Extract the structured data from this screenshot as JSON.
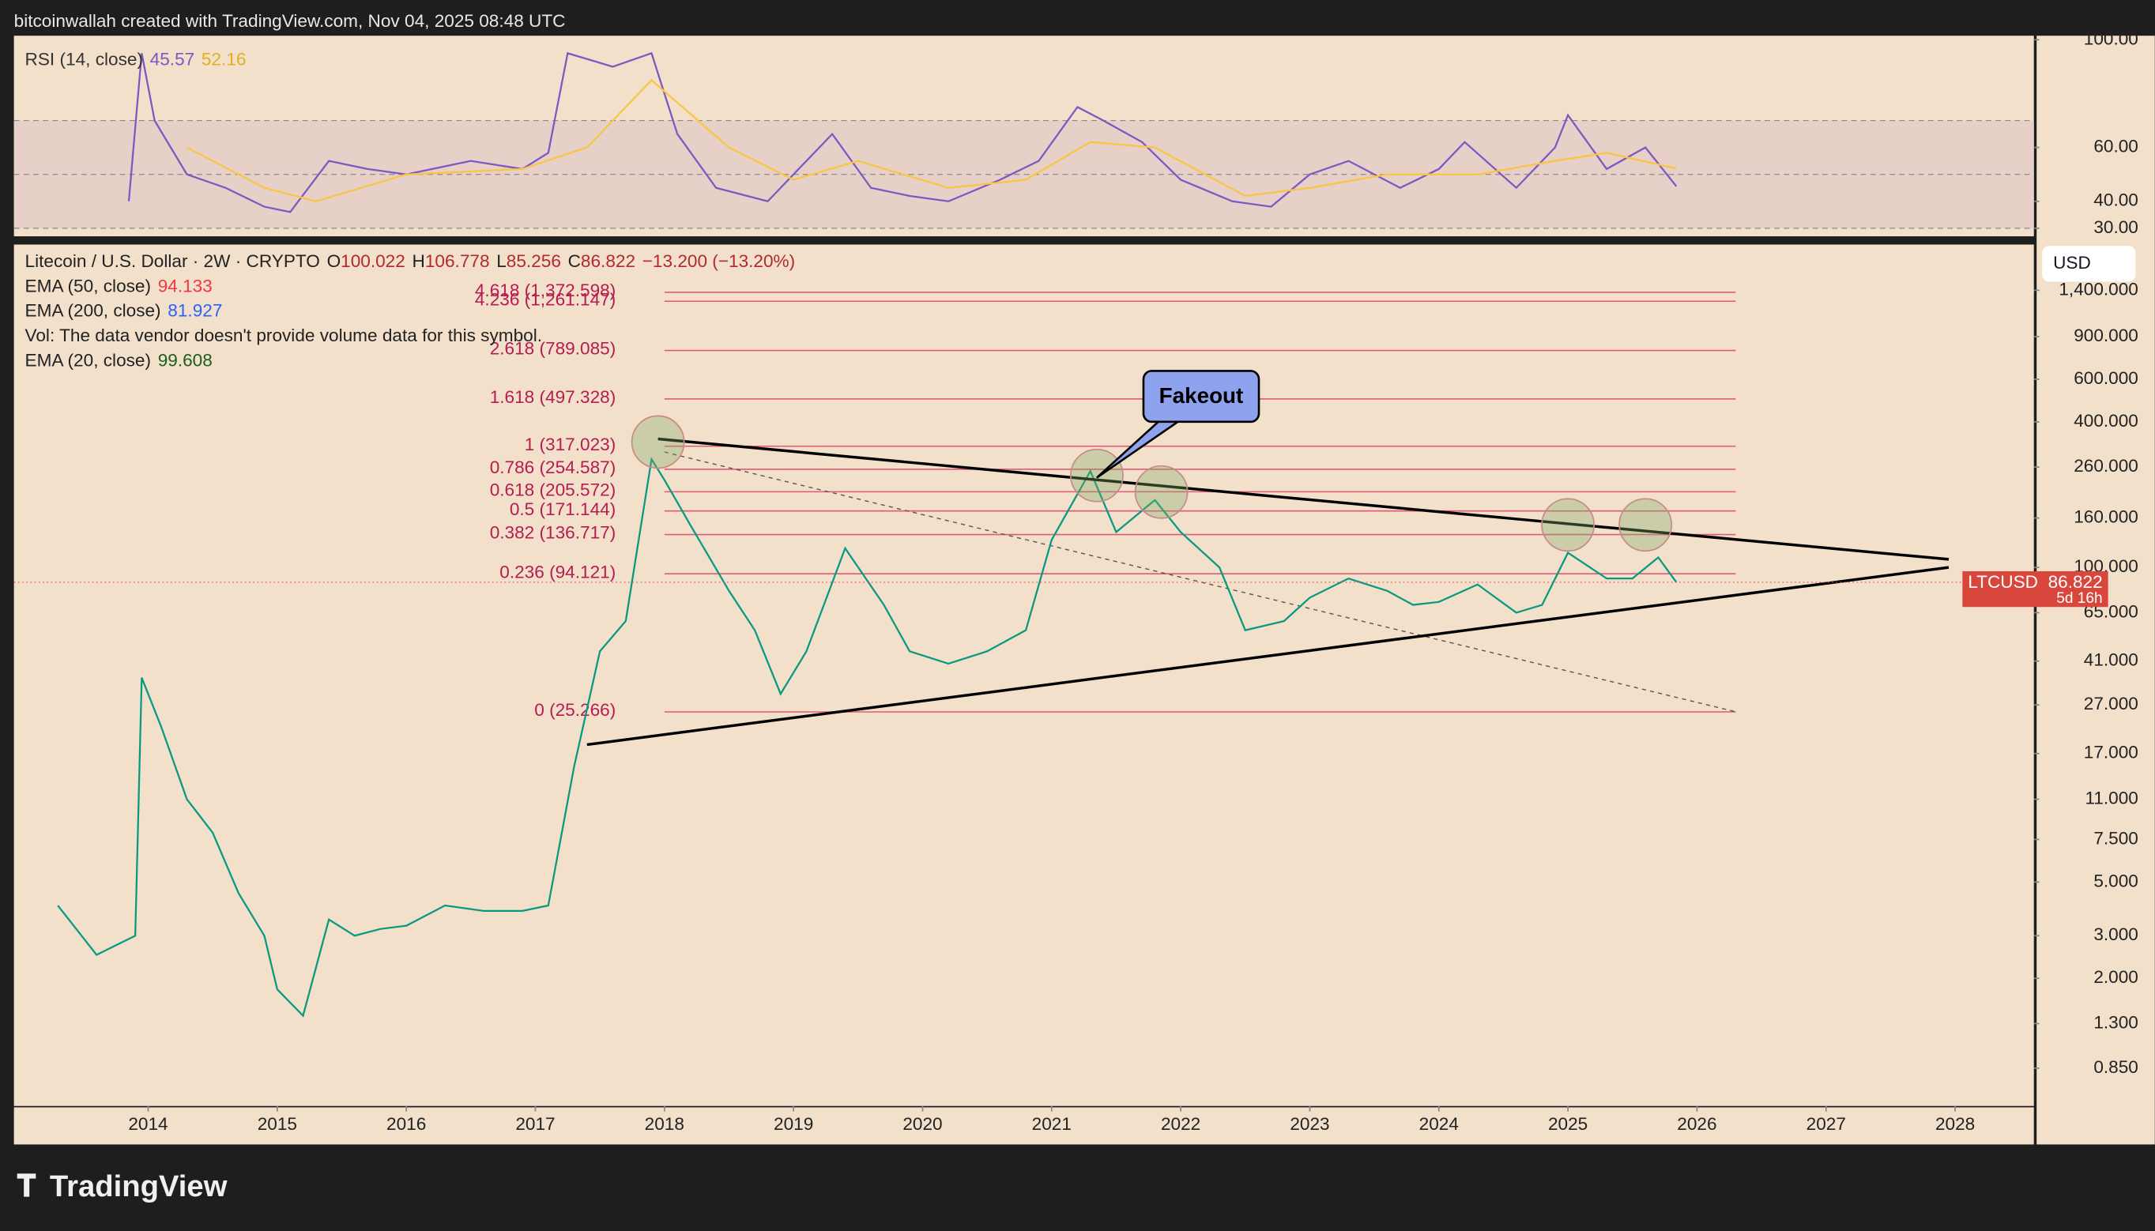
{
  "header": "bitcoinwallah created with TradingView.com, Nov 04, 2025 08:48 UTC",
  "logo": "TradingView",
  "currency_button": "USD",
  "countdown": "5d 16h",
  "chart_data": [
    {
      "type": "line",
      "title": "RSI (14, close)",
      "xlim": [
        2012.96,
        2028.61
      ],
      "ylim": [
        27,
        101.5
      ],
      "yticks": [
        {
          "value": 30,
          "label": "30.00"
        },
        {
          "value": 40,
          "label": "40.00"
        },
        {
          "value": 60,
          "label": "60.00"
        },
        {
          "value": 100,
          "label": "100.00"
        }
      ],
      "bands": [
        30,
        50,
        70
      ],
      "series": [
        {
          "name": "RSI (14, close)",
          "color": "#7e57c2",
          "x": [
            2013.85,
            2013.95,
            2014.05,
            2014.3,
            2014.6,
            2014.9,
            2015.1,
            2015.4,
            2015.7,
            2016.0,
            2016.5,
            2016.9,
            2017.1,
            2017.25,
            2017.6,
            2017.9,
            2018.1,
            2018.4,
            2018.8,
            2019.3,
            2019.6,
            2019.9,
            2020.2,
            2020.6,
            2020.9,
            2021.2,
            2021.4,
            2021.7,
            2022.0,
            2022.4,
            2022.7,
            2023.0,
            2023.3,
            2023.7,
            2024.0,
            2024.2,
            2024.6,
            2024.9,
            2025.0,
            2025.3,
            2025.6,
            2025.84
          ],
          "values": [
            40,
            95,
            70,
            50,
            45,
            38,
            36,
            55,
            52,
            50,
            55,
            52,
            58,
            95,
            90,
            95,
            65,
            45,
            40,
            65,
            45,
            42,
            40,
            48,
            55,
            75,
            70,
            62,
            48,
            40,
            38,
            50,
            55,
            45,
            52,
            62,
            45,
            60,
            72,
            52,
            60,
            45.57
          ]
        },
        {
          "color": "#f7c744",
          "x": [
            2014.3,
            2014.9,
            2015.3,
            2016.0,
            2016.9,
            2017.4,
            2017.9,
            2018.5,
            2019.0,
            2019.5,
            2020.2,
            2020.8,
            2021.3,
            2021.8,
            2022.5,
            2023.0,
            2023.6,
            2024.3,
            2024.9,
            2025.3,
            2025.84
          ],
          "values": [
            60,
            45,
            40,
            50,
            52,
            60,
            85,
            60,
            48,
            55,
            45,
            48,
            62,
            60,
            42,
            45,
            50,
            50,
            55,
            58,
            52.16
          ]
        }
      ]
    },
    {
      "type": "line",
      "title": "Litecoin / U.S. Dollar · 2W · CRYPTO",
      "log": true,
      "xlim": [
        2012.96,
        2028.61
      ],
      "ylim": [
        0.593,
        2163
      ],
      "ohlc": [
        {
          "name": "O",
          "value": 100.022
        },
        {
          "name": "H",
          "value": 106.778
        },
        {
          "name": "L",
          "value": 85.256
        },
        {
          "name": "C",
          "value": 86.822
        }
      ],
      "change": {
        "value": -13.2,
        "label": "−13.200 (−13.20%)"
      },
      "indicators": [
        {
          "name": "EMA (50, close)",
          "value": 94.133,
          "color": "#f23645"
        },
        {
          "name": "EMA (200, close)",
          "value": 81.927,
          "color": "#2962ff"
        },
        {
          "name": "Vol: The data vendor doesn't provide volume data for this symbol."
        },
        {
          "name": "EMA (20, close)",
          "value": 99.608,
          "color": "#1b5e20"
        }
      ],
      "xticks": [
        2014,
        2015,
        2016,
        2017,
        2018,
        2019,
        2020,
        2021,
        2022,
        2023,
        2024,
        2025,
        2026,
        2027,
        2028
      ],
      "yticks": [
        {
          "value": 0.85,
          "label": "0.850"
        },
        {
          "value": 1.3,
          "label": "1.300"
        },
        {
          "value": 2,
          "label": "2.000"
        },
        {
          "value": 3,
          "label": "3.000"
        },
        {
          "value": 5,
          "label": "5.000"
        },
        {
          "value": 7.5,
          "label": "7.500"
        },
        {
          "value": 11,
          "label": "11.000"
        },
        {
          "value": 17,
          "label": "17.000"
        },
        {
          "value": 27,
          "label": "27.000"
        },
        {
          "value": 41,
          "label": "41.000"
        },
        {
          "value": 65,
          "label": "65.000"
        },
        {
          "value": 100,
          "label": "100.000"
        },
        {
          "value": 160,
          "label": "160.000"
        },
        {
          "value": 260,
          "label": "260.000"
        },
        {
          "value": 400,
          "label": "400.000"
        },
        {
          "value": 600,
          "label": "600.000"
        },
        {
          "value": 900,
          "label": "900.000"
        },
        {
          "value": 1400,
          "label": "1,400.000"
        }
      ],
      "series": [
        {
          "name": "LTCUSD",
          "color": "#089981",
          "x": [
            2013.3,
            2013.6,
            2013.9,
            2013.95,
            2014.1,
            2014.3,
            2014.5,
            2014.7,
            2014.9,
            2015.0,
            2015.2,
            2015.4,
            2015.6,
            2015.8,
            2016.0,
            2016.3,
            2016.6,
            2016.9,
            2017.1,
            2017.3,
            2017.5,
            2017.7,
            2017.9,
            2018.0,
            2018.2,
            2018.5,
            2018.7,
            2018.9,
            2019.1,
            2019.4,
            2019.7,
            2019.9,
            2020.2,
            2020.5,
            2020.8,
            2021.0,
            2021.3,
            2021.5,
            2021.8,
            2022.0,
            2022.3,
            2022.5,
            2022.8,
            2023.0,
            2023.3,
            2023.6,
            2023.8,
            2024.0,
            2024.3,
            2024.6,
            2024.8,
            2025.0,
            2025.3,
            2025.5,
            2025.7,
            2025.84
          ],
          "values": [
            4,
            2.5,
            3,
            35,
            22,
            11,
            8,
            4.5,
            3,
            1.8,
            1.4,
            3.5,
            3,
            3.2,
            3.3,
            4,
            3.8,
            3.8,
            4,
            15,
            45,
            60,
            280,
            230,
            150,
            80,
            55,
            30,
            45,
            120,
            70,
            45,
            40,
            45,
            55,
            130,
            250,
            140,
            190,
            140,
            100,
            55,
            60,
            75,
            90,
            80,
            70,
            72,
            85,
            65,
            70,
            115,
            90,
            90,
            110,
            86.822
          ]
        }
      ],
      "fib": [
        {
          "label": "4.618 (1,372.598)",
          "price": 1372.598
        },
        {
          "label": "4.236 (1,261.147)",
          "price": 1261.147
        },
        {
          "label": "2.618 (789.085)",
          "price": 789.085
        },
        {
          "label": "1.618 (497.328)",
          "price": 497.328
        },
        {
          "label": "1 (317.023)",
          "price": 317.023
        },
        {
          "label": "0.786 (254.587)",
          "price": 254.587
        },
        {
          "label": "0.618 (205.572)",
          "price": 205.572
        },
        {
          "label": "0.5 (171.144)",
          "price": 171.144
        },
        {
          "label": "0.382 (136.717)",
          "price": 136.717
        },
        {
          "label": "0.236 (94.121)",
          "price": 94.121
        },
        {
          "label": "0 (25.266)",
          "price": 25.266
        }
      ],
      "fib_x": [
        2018.0,
        2026.3
      ],
      "trendlines": [
        {
          "x": [
            2017.95,
            2027.95
          ],
          "y": [
            340,
            108
          ]
        },
        {
          "x": [
            2017.4,
            2027.95
          ],
          "y": [
            18.5,
            100
          ]
        }
      ],
      "dashed_line": {
        "x": [
          2018.0,
          2026.3
        ],
        "y": [
          300,
          25.3
        ]
      },
      "circles": {
        "x": [
          2017.95,
          2021.35,
          2021.85,
          2025.0,
          2025.6
        ],
        "y": [
          330,
          240,
          205,
          150,
          150
        ]
      },
      "annotation": {
        "text": "Fakeout",
        "x": 2021.35,
        "y": 235
      }
    }
  ]
}
